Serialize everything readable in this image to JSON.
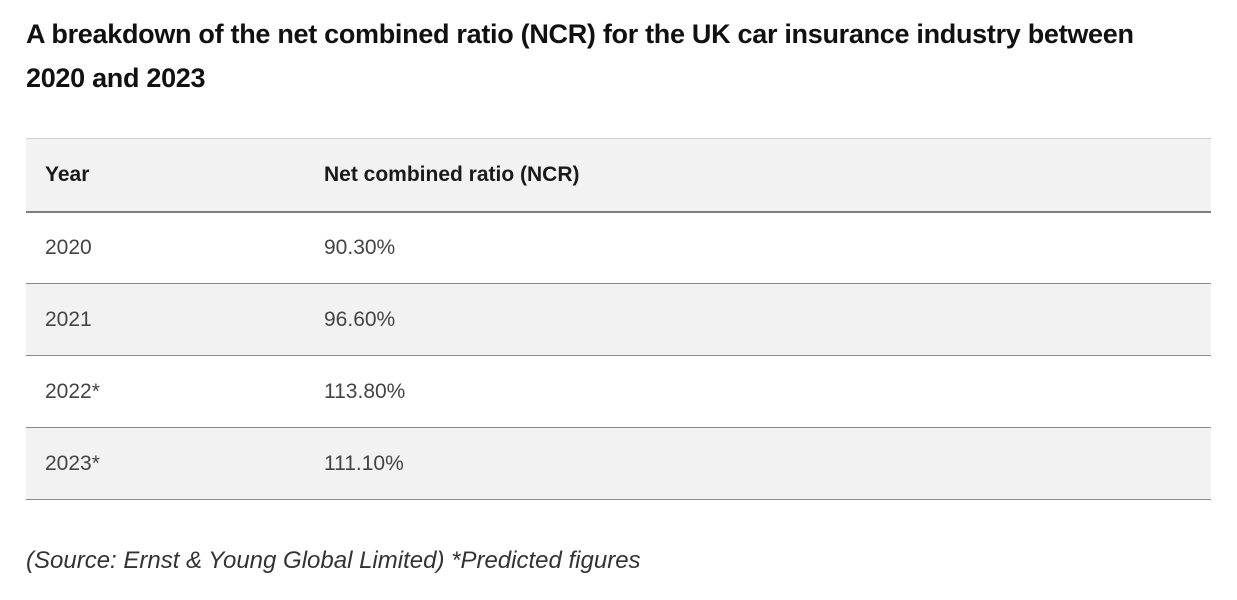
{
  "title": "A breakdown of the net combined ratio (NCR) for the UK car insurance industry between 2020 and 2023",
  "table": {
    "headers": {
      "year": "Year",
      "ncr": "Net combined ratio (NCR)"
    },
    "rows": [
      {
        "year": "2020",
        "ncr": "90.30%"
      },
      {
        "year": "2021",
        "ncr": "96.60%"
      },
      {
        "year": "2022*",
        "ncr": "113.80%"
      },
      {
        "year": "2023*",
        "ncr": "111.10%"
      }
    ]
  },
  "source_note": "(Source: Ernst & Young Global Limited) *Predicted figures",
  "colors": {
    "text": "#111111",
    "row_shade": "#f2f2f2",
    "divider": "#8a8a8a"
  }
}
